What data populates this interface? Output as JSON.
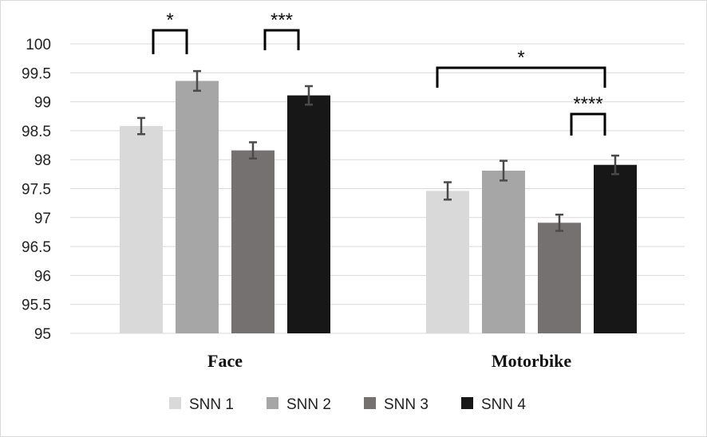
{
  "chart_data": {
    "type": "bar",
    "title": "",
    "xlabel": "",
    "ylabel": "",
    "ylim": [
      95,
      100
    ],
    "yticks": [
      "95",
      "95.5",
      "96",
      "96.5",
      "97",
      "97.5",
      "98",
      "98.5",
      "99",
      "99.5",
      "100"
    ],
    "categories": [
      "Face",
      "Motorbike"
    ],
    "series": [
      {
        "name": "SNN 1",
        "color": "#d9d9d9",
        "values": [
          98.58,
          97.46
        ],
        "errors": [
          0.14,
          0.15
        ]
      },
      {
        "name": "SNN 2",
        "color": "#a6a6a6",
        "values": [
          99.36,
          97.81
        ],
        "errors": [
          0.17,
          0.17
        ]
      },
      {
        "name": "SNN 3",
        "color": "#767171",
        "values": [
          98.16,
          96.91
        ],
        "errors": [
          0.14,
          0.14
        ]
      },
      {
        "name": "SNN 4",
        "color": "#171717",
        "values": [
          99.11,
          97.91
        ],
        "errors": [
          0.16,
          0.16
        ]
      }
    ],
    "legend_position": "bottom",
    "grid": true,
    "significance": [
      {
        "category": 0,
        "from_series": 0,
        "to_series": 1,
        "label": "*"
      },
      {
        "category": 0,
        "from_series": 2,
        "to_series": 3,
        "label": "***"
      },
      {
        "category": 1,
        "from_series": 0,
        "to_series": 3,
        "label": "*"
      },
      {
        "category": 1,
        "from_series": 2,
        "to_series": 3,
        "label": "****"
      }
    ]
  }
}
